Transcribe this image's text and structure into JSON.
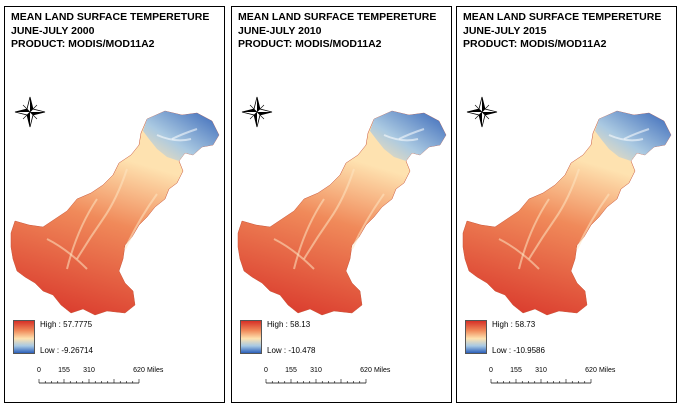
{
  "panels": [
    {
      "title": [
        "MEAN LAND SURFACE TEMPERETURE",
        "JUNE-JULY 2000",
        "PRODUCT: MODIS/MOD11A2"
      ],
      "legend": {
        "high": "High : 57.7775",
        "low": "Low : -9.26714"
      }
    },
    {
      "title": [
        "MEAN LAND SURFACE TEMPERETURE",
        "JUNE-JULY 2010",
        "PRODUCT: MODIS/MOD11A2"
      ],
      "legend": {
        "high": "High : 58.13",
        "low": "Low : -10.478"
      }
    },
    {
      "title": [
        "MEAN LAND SURFACE TEMPERETURE",
        "JUNE-JULY 2015",
        "PRODUCT: MODIS/MOD11A2"
      ],
      "legend": {
        "high": "High : 58.73",
        "low": "Low : -10.9586"
      }
    }
  ],
  "scalebar": {
    "ticks": [
      "0",
      "155",
      "310",
      "620"
    ],
    "units": "Miles"
  },
  "compass": {
    "labels": [
      "N",
      "E",
      "S",
      "W"
    ]
  },
  "colors": {
    "high": "#d73027",
    "mid_high": "#f08a5a",
    "mid": "#fee2b0",
    "low_mid": "#a6c8e4",
    "low": "#2c5fb8"
  }
}
